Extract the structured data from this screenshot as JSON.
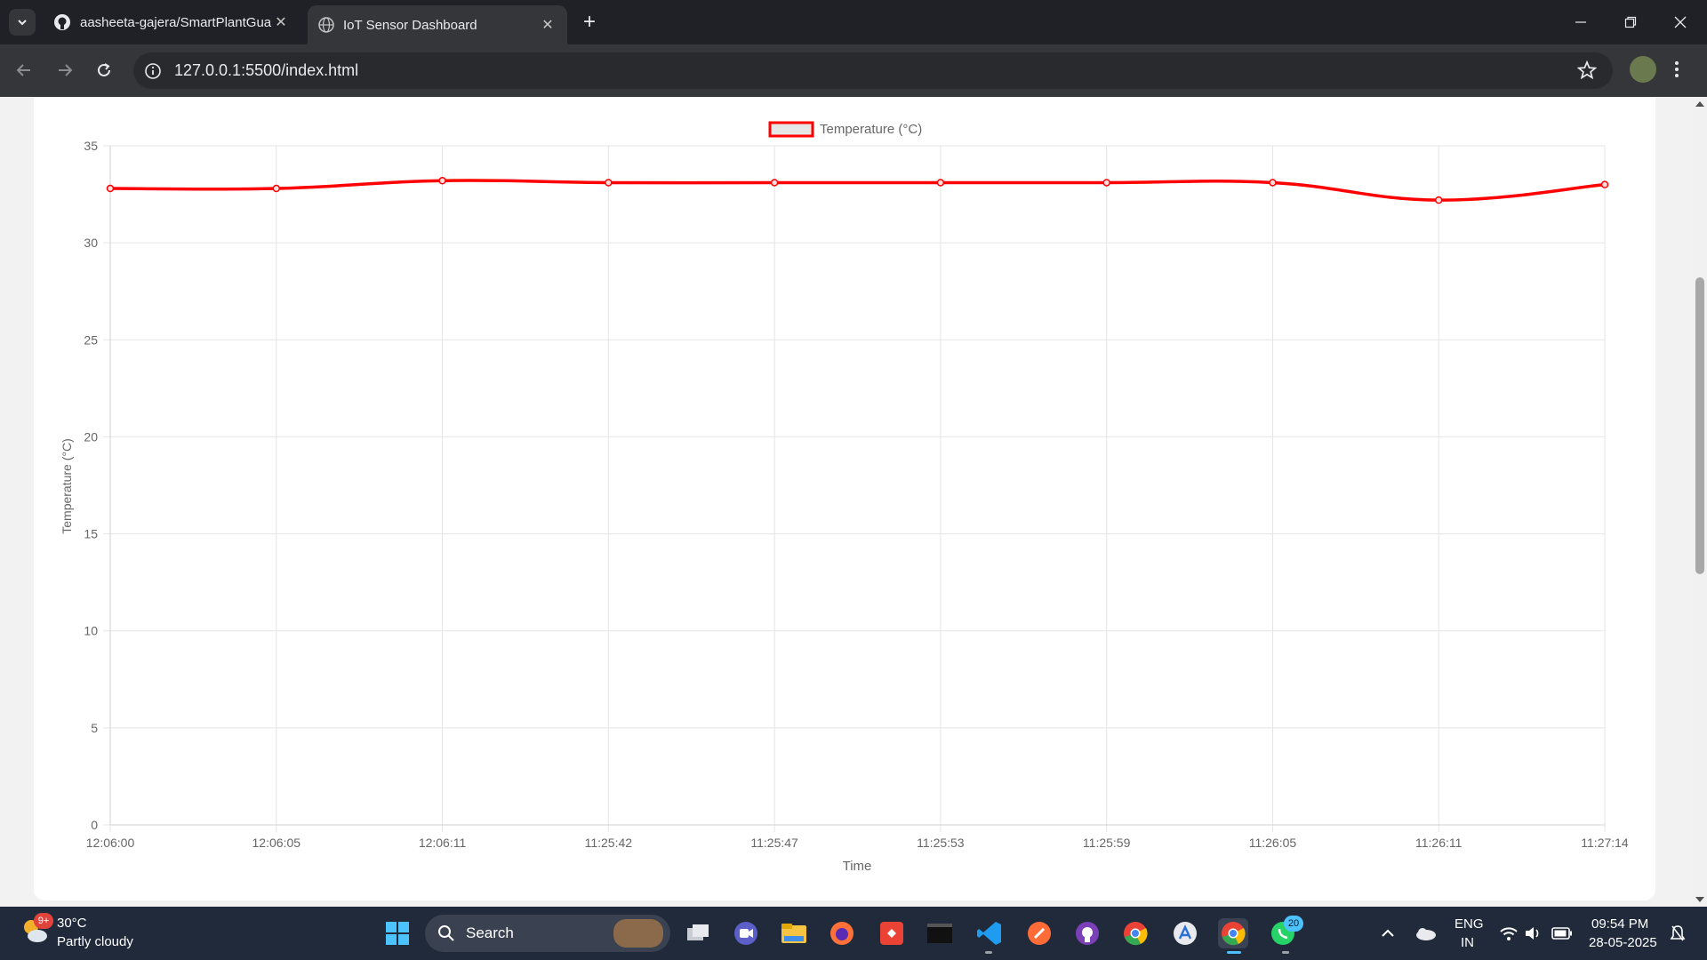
{
  "browser": {
    "tabs": [
      {
        "title": "aasheeta-gajera/SmartPlantGua",
        "active": false
      },
      {
        "title": "IoT Sensor Dashboard",
        "active": true
      }
    ],
    "url": "127.0.0.1:5500/index.html"
  },
  "chart_data": {
    "type": "line",
    "categories": [
      "12:06:00",
      "12:06:05",
      "12:06:11",
      "11:25:42",
      "11:25:47",
      "11:25:53",
      "11:25:59",
      "11:26:05",
      "11:26:11",
      "11:27:14"
    ],
    "series": [
      {
        "name": "Temperature (°C)",
        "values": [
          32.8,
          32.8,
          33.2,
          33.1,
          33.1,
          33.1,
          33.1,
          33.1,
          32.2,
          33.0
        ],
        "color": "#ff0000"
      }
    ],
    "xlabel": "Time",
    "ylabel": "Temperature (°C)",
    "ylim": [
      0,
      35
    ],
    "yticks": [
      "0",
      "5",
      "10",
      "15",
      "20",
      "25",
      "30",
      "35"
    ],
    "grid": true,
    "legend_position": "top"
  },
  "taskbar": {
    "weather_temp": "30°C",
    "weather_desc": "Partly cloudy",
    "weather_badge": "9+",
    "search_label": "Search",
    "lang_line1": "ENG",
    "lang_line2": "IN",
    "time": "09:54 PM",
    "date": "28-05-2025",
    "whatsapp_badge": "20"
  }
}
